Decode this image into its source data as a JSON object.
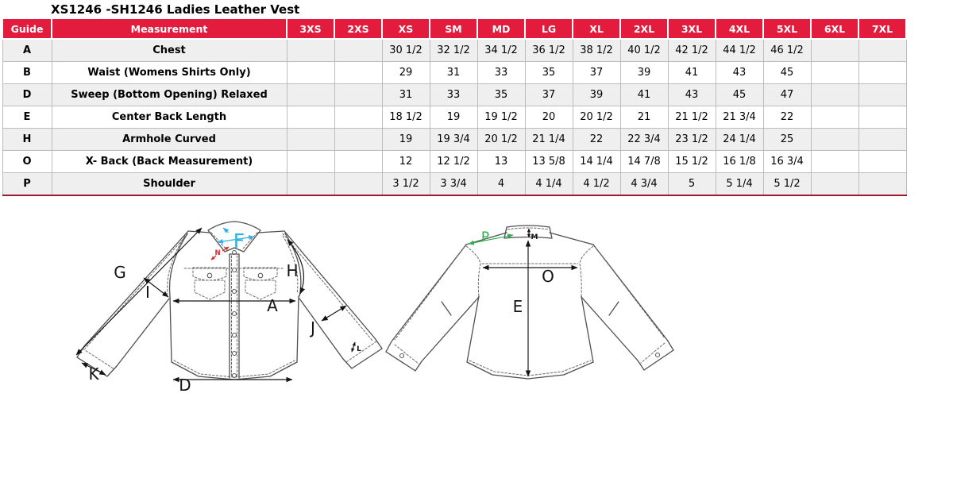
{
  "title": "XS1246 -SH1246 Ladies Leather Vest",
  "colors": {
    "header_bg": "#e31c3d",
    "header_text": "#ffffff",
    "row_alt_bg": "#efefef",
    "row_bg": "#ffffff",
    "cell_border": "#bcbcbc",
    "table_bottom_border": "#9e1b2f",
    "drawing_line": "#4f4f4f",
    "label_f_cyan": "#2eb2e3",
    "label_n_red": "#e02424",
    "label_p_green": "#2fac4f"
  },
  "size_chart": {
    "columns": [
      "Guide",
      "Measurement",
      "3XS",
      "2XS",
      "XS",
      "SM",
      "MD",
      "LG",
      "XL",
      "2XL",
      "3XL",
      "4XL",
      "5XL",
      "6XL",
      "7XL"
    ],
    "rows": [
      {
        "guide": "A",
        "measurement": "Chest",
        "values": [
          "",
          "",
          "30 1/2",
          "32 1/2",
          "34 1/2",
          "36 1/2",
          "38 1/2",
          "40 1/2",
          "42 1/2",
          "44 1/2",
          "46 1/2",
          "",
          ""
        ]
      },
      {
        "guide": "B",
        "measurement": "Waist (Womens Shirts Only)",
        "values": [
          "",
          "",
          "29",
          "31",
          "33",
          "35",
          "37",
          "39",
          "41",
          "43",
          "45",
          "",
          ""
        ]
      },
      {
        "guide": "D",
        "measurement": "Sweep (Bottom Opening)  Relaxed",
        "values": [
          "",
          "",
          "31",
          "33",
          "35",
          "37",
          "39",
          "41",
          "43",
          "45",
          "47",
          "",
          ""
        ]
      },
      {
        "guide": "E",
        "measurement": "Center Back Length",
        "values": [
          "",
          "",
          "18 1/2",
          "19",
          "19 1/2",
          "20",
          "20 1/2",
          "21",
          "21 1/2",
          "21 3/4",
          "22",
          "",
          ""
        ]
      },
      {
        "guide": "H",
        "measurement": "Armhole Curved",
        "values": [
          "",
          "",
          "19",
          "19 3/4",
          "20 1/2",
          "21 1/4",
          "22",
          "22 3/4",
          "23 1/2",
          "24 1/4",
          "25",
          "",
          ""
        ]
      },
      {
        "guide": "O",
        "measurement": "X- Back (Back Measurement)",
        "values": [
          "",
          "",
          "12",
          "12 1/2",
          "13",
          "13 5/8",
          "14 1/4",
          "14 7/8",
          "15 1/2",
          "16 1/8",
          "16 3/4",
          "",
          ""
        ]
      },
      {
        "guide": "P",
        "measurement": "Shoulder",
        "values": [
          "",
          "",
          "3 1/2",
          "3 3/4",
          "4",
          "4 1/4",
          "4 1/2",
          "4 3/4",
          "5",
          "5 1/4",
          "5 1/2",
          "",
          ""
        ]
      }
    ]
  },
  "diagram": {
    "front": {
      "chest": "A",
      "sweep": "D",
      "collar_width": "F",
      "sleeve_length": "G",
      "armhole": "H",
      "shoulder_slope": "I",
      "sleeve_width": "J",
      "cuff_width": "K",
      "cuff_height": "L",
      "neck_point": "N"
    },
    "back": {
      "center_back_length": "E",
      "collar_height": "M",
      "cross_back": "O",
      "shoulder": "P"
    }
  }
}
